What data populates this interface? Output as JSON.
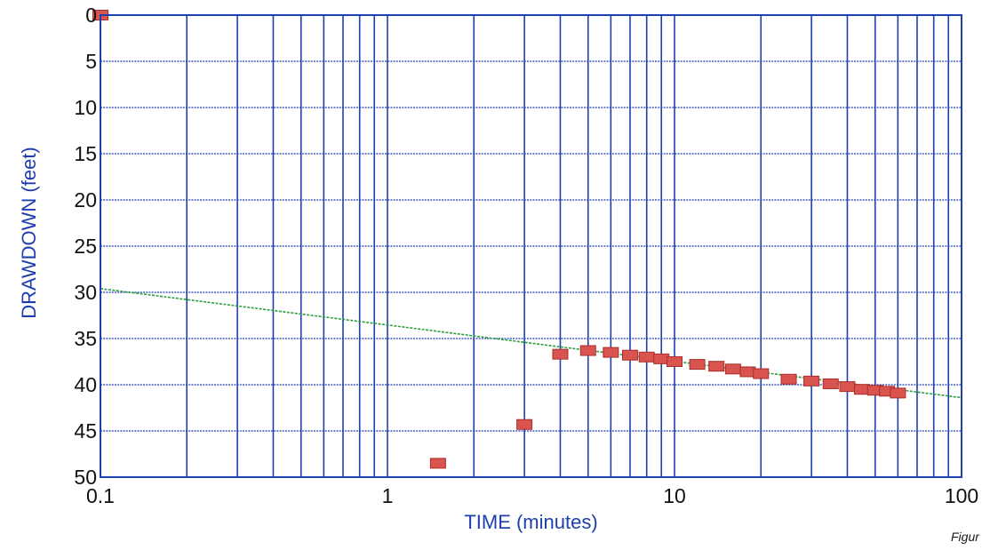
{
  "chart_data": {
    "type": "scatter",
    "title": "",
    "xlabel": "TIME (minutes)",
    "ylabel": "DRAWDOWN (feet)",
    "x_scale": "log",
    "xlim": [
      0.1,
      100
    ],
    "ylim": [
      0,
      50
    ],
    "y_inverted": true,
    "grid": true,
    "x_ticks": [
      0.1,
      1,
      10,
      100
    ],
    "x_tick_labels": [
      "0.1",
      "1",
      "10",
      "100"
    ],
    "y_ticks": [
      0,
      5,
      10,
      15,
      20,
      25,
      30,
      35,
      40,
      45,
      50
    ],
    "y_tick_labels": [
      "0",
      "5",
      "10",
      "15",
      "20",
      "25",
      "30",
      "35",
      "40",
      "45",
      "50"
    ],
    "series": [
      {
        "type": "scatter",
        "color": "#d9534f",
        "x": [
          0.1,
          1.5,
          3,
          4,
          5,
          6,
          7,
          8,
          9,
          10,
          12,
          14,
          16,
          18,
          20,
          25,
          30,
          35,
          40,
          45,
          50,
          55,
          60
        ],
        "y": [
          0,
          48.5,
          44.3,
          36.7,
          36.3,
          36.5,
          36.8,
          37.0,
          37.2,
          37.5,
          37.8,
          38.0,
          38.3,
          38.6,
          38.8,
          39.4,
          39.6,
          39.9,
          40.2,
          40.5,
          40.6,
          40.7,
          40.9
        ]
      },
      {
        "type": "line",
        "color": "#2e9e3e",
        "x": [
          0.1,
          100
        ],
        "y": [
          29.6,
          41.4
        ]
      }
    ],
    "colors": {
      "axis": "#1e3fb0",
      "grid": "#1e3fb0",
      "label": "#1e3fb0",
      "tick_label": "#111111",
      "marker": "#d9534f",
      "marker_stroke": "#a82f2b",
      "fit_line": "#2e9e3e"
    }
  },
  "caption_fragment": "Figur"
}
